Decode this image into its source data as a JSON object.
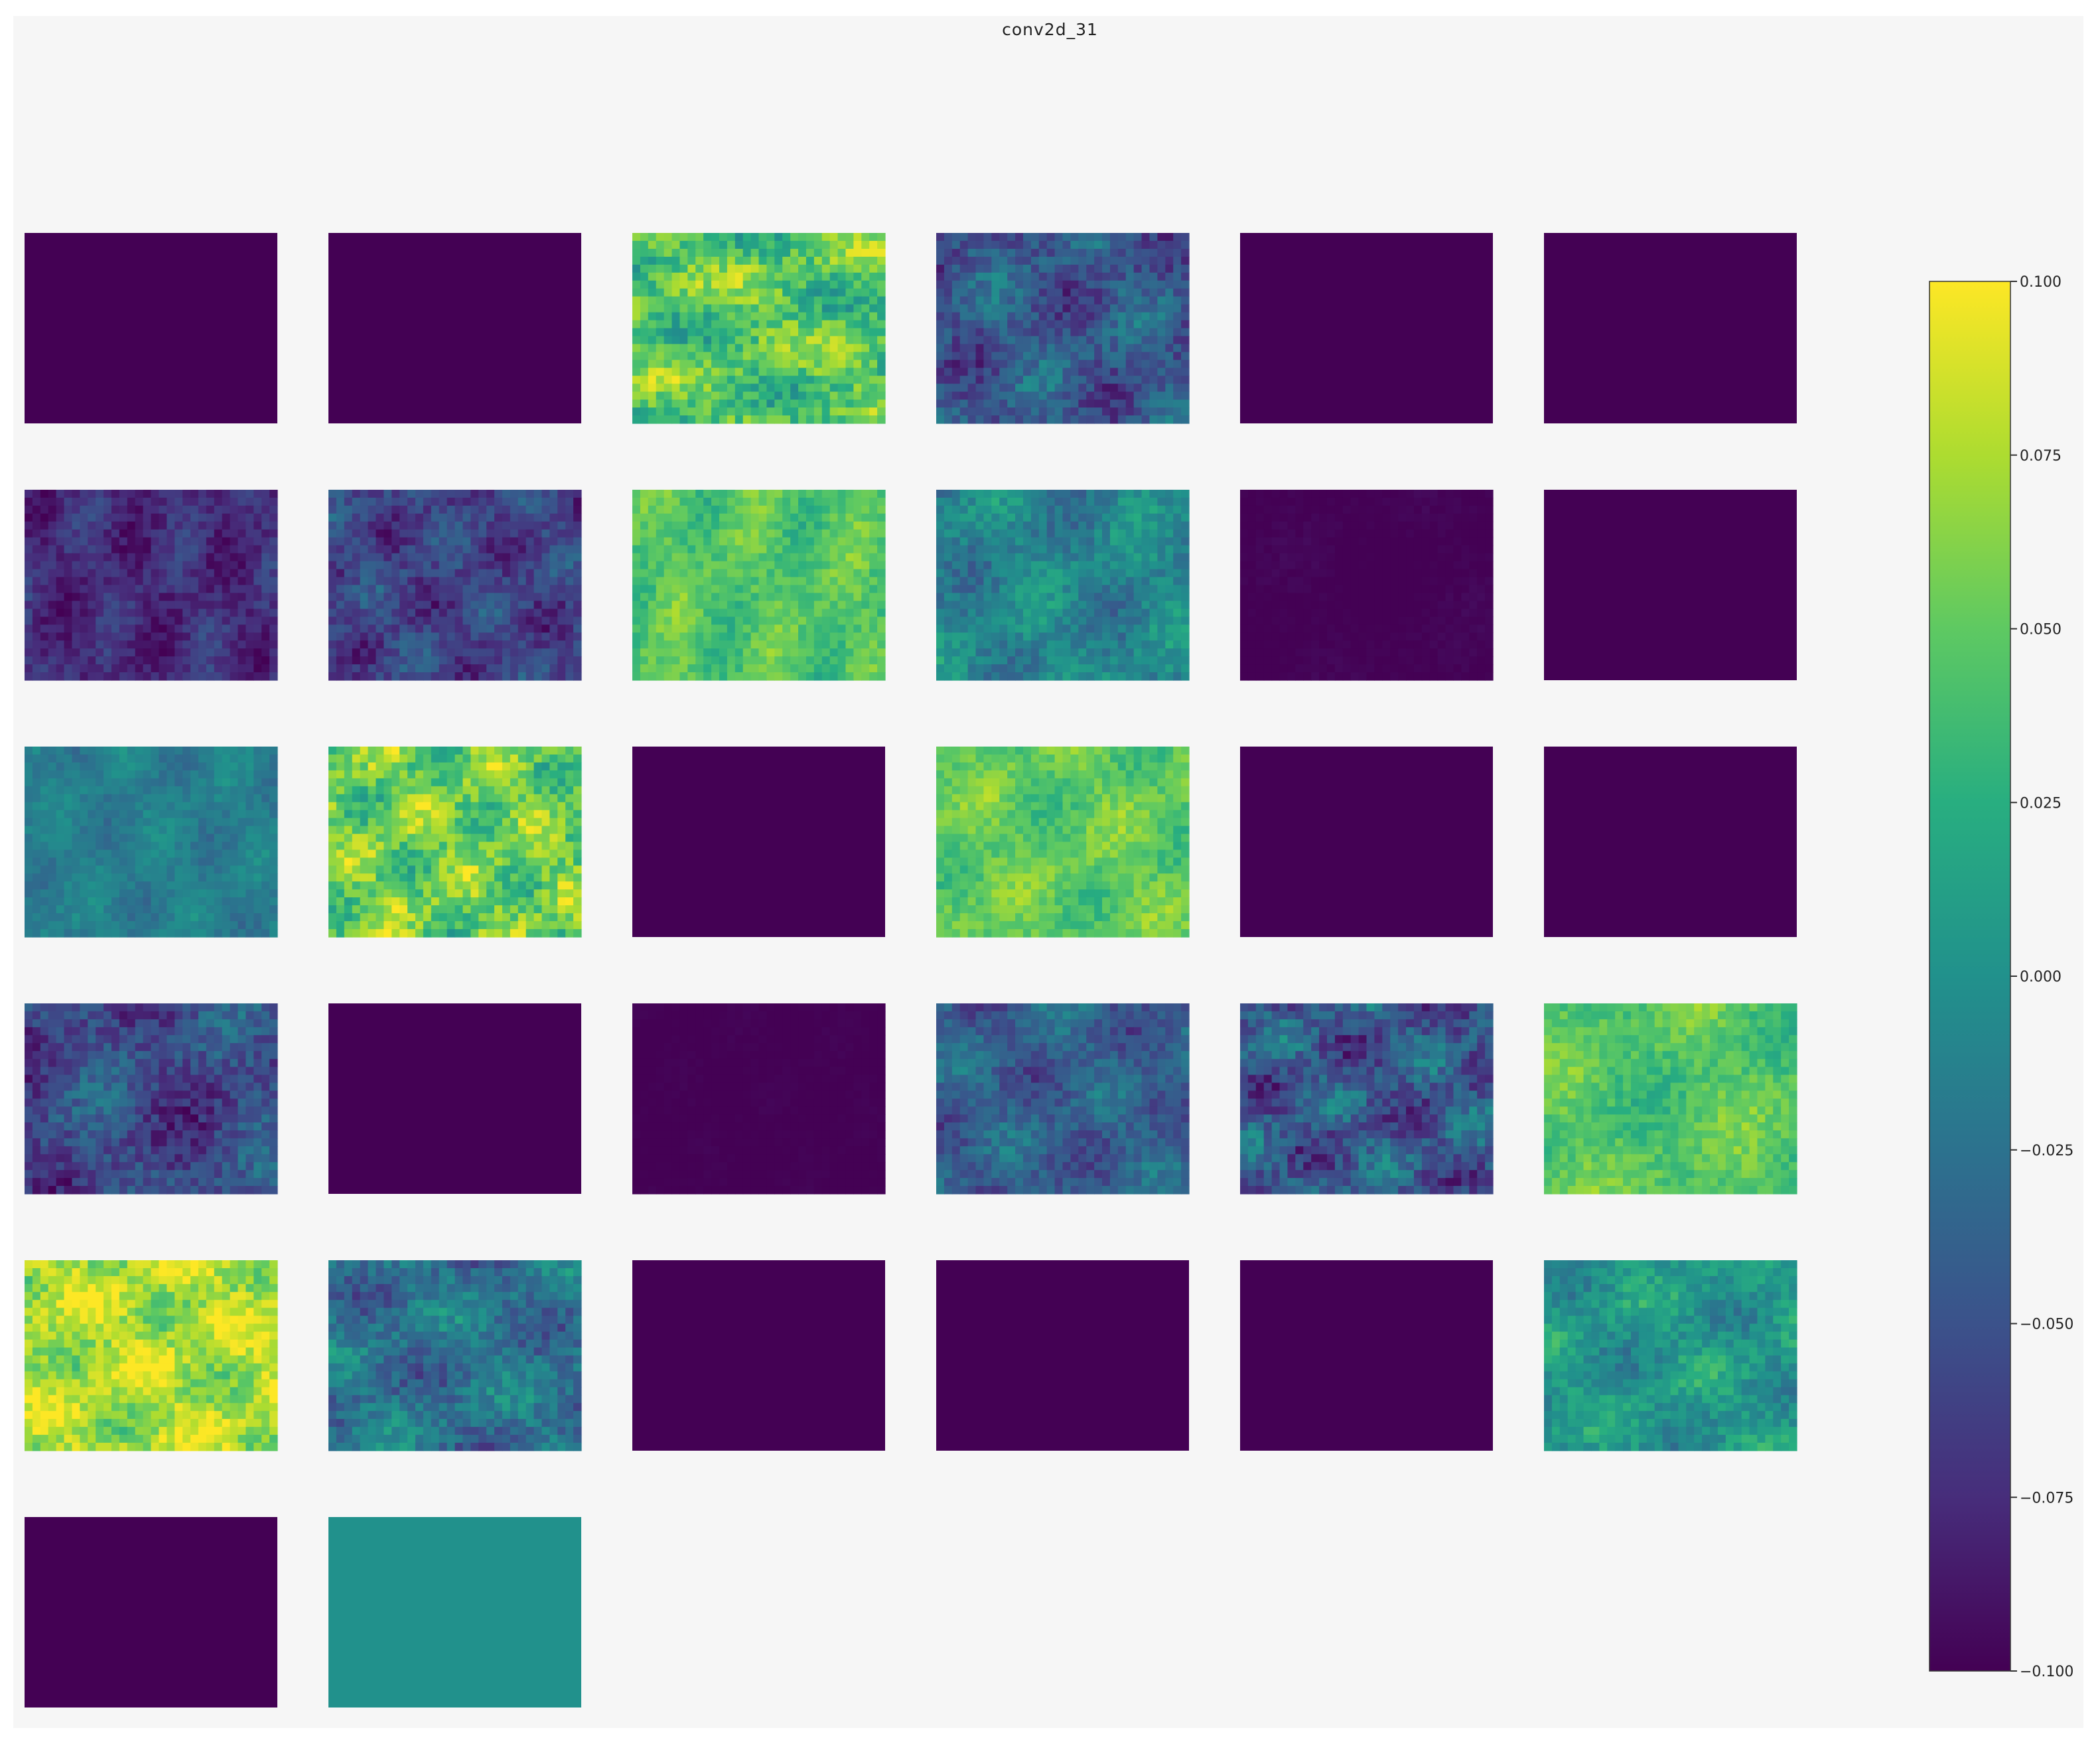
{
  "chart_data": {
    "type": "heatmap",
    "title": "conv2d_31",
    "layout": {
      "rows": 6,
      "cols": 6,
      "panel_count": 32
    },
    "colormap": "viridis",
    "colorbar": {
      "vmin": -0.1,
      "vmax": 0.1,
      "ticks": [
        0.1,
        0.075,
        0.05,
        0.025,
        0.0,
        -0.025,
        -0.05,
        -0.075,
        -0.1
      ],
      "tick_labels": [
        "0.100",
        "0.075",
        "0.050",
        "0.025",
        "0.000",
        "−0.025",
        "−0.050",
        "−0.075",
        "−0.100"
      ],
      "placement": "right"
    },
    "panels": [
      {
        "mean": -0.1,
        "texture": 0.0
      },
      {
        "mean": -0.1,
        "texture": 0.0
      },
      {
        "mean": 0.045,
        "texture": 0.035
      },
      {
        "mean": -0.045,
        "texture": 0.03
      },
      {
        "mean": -0.1,
        "texture": 0.0
      },
      {
        "mean": -0.1,
        "texture": 0.0
      },
      {
        "mean": -0.075,
        "texture": 0.02
      },
      {
        "mean": -0.06,
        "texture": 0.025
      },
      {
        "mean": 0.045,
        "texture": 0.02
      },
      {
        "mean": -0.01,
        "texture": 0.025
      },
      {
        "mean": -0.1,
        "texture": 0.004
      },
      {
        "mean": -0.1,
        "texture": 0.0
      },
      {
        "mean": -0.015,
        "texture": 0.015
      },
      {
        "mean": 0.055,
        "texture": 0.035
      },
      {
        "mean": -0.1,
        "texture": 0.0
      },
      {
        "mean": 0.05,
        "texture": 0.02
      },
      {
        "mean": -0.1,
        "texture": 0.0
      },
      {
        "mean": -0.1,
        "texture": 0.0
      },
      {
        "mean": -0.055,
        "texture": 0.03
      },
      {
        "mean": -0.1,
        "texture": 0.0
      },
      {
        "mean": -0.1,
        "texture": 0.002
      },
      {
        "mean": -0.04,
        "texture": 0.025
      },
      {
        "mean": -0.045,
        "texture": 0.035
      },
      {
        "mean": 0.045,
        "texture": 0.02
      },
      {
        "mean": 0.075,
        "texture": 0.03
      },
      {
        "mean": -0.025,
        "texture": 0.03
      },
      {
        "mean": -0.1,
        "texture": 0.0
      },
      {
        "mean": -0.1,
        "texture": 0.0
      },
      {
        "mean": -0.1,
        "texture": 0.0
      },
      {
        "mean": 0.005,
        "texture": 0.025
      },
      {
        "mean": -0.1,
        "texture": 0.0
      },
      {
        "mean": 0.0,
        "texture": 0.0
      }
    ]
  }
}
